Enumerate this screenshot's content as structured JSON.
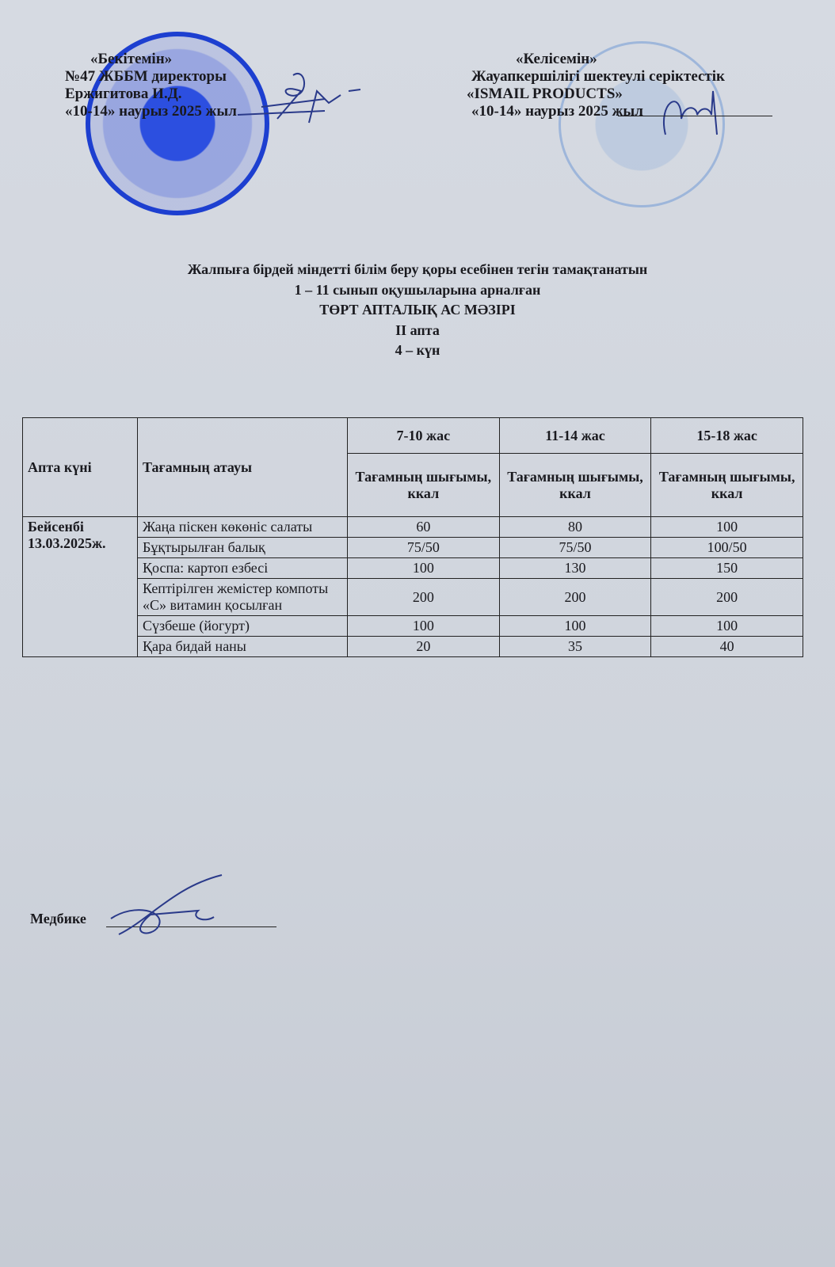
{
  "approve": {
    "line1": "«Бекітемін»",
    "line2": "№47 ЖББМ директоры",
    "line3": "Ержигитова И.Д.",
    "line4": "«10-14» наурыз 2025 жыл"
  },
  "agree": {
    "line1": "«Келісемін»",
    "line2": "Жауапкершілігі шектеулі серіктестік",
    "line3": "«ISMAIL PRODUCTS»",
    "line4": "«10-14» наурыз 2025 жыл"
  },
  "title": {
    "line1": "Жалпыға бірдей міндетті білім беру қоры есебінен тегін тамақтанатын",
    "line2": "1 – 11 сынып оқушыларына арналған",
    "line3": "ТӨРТ АПТАЛЫҚ АС МӘЗІРІ",
    "week": "II апта",
    "day": "4 – күн"
  },
  "table": {
    "col_day": "Апта күні",
    "col_dish": "Тағамның атауы",
    "ages": [
      "7-10 жас",
      "11-14 жас",
      "15-18 жас"
    ],
    "yield_label": "Тағамның шығымы, ккал",
    "day_name": "Бейсенбі",
    "day_date": "13.03.2025ж.",
    "rows": [
      {
        "dish": "Жаңа піскен көкөніс салаты",
        "v": [
          "60",
          "80",
          "100"
        ]
      },
      {
        "dish": "Бұқтырылған балық",
        "v": [
          "75/50",
          "75/50",
          "100/50"
        ]
      },
      {
        "dish": "Қоспа: картоп езбесі",
        "v": [
          "100",
          "130",
          "150"
        ]
      },
      {
        "dish": "Кептірілген жемістер компоты «С» витамин қосылған",
        "v": [
          "200",
          "200",
          "200"
        ]
      },
      {
        "dish": "Сүзбеше (йогурт)",
        "v": [
          "100",
          "100",
          "100"
        ]
      },
      {
        "dish": "Қара бидай наны",
        "v": [
          "20",
          "35",
          "40"
        ]
      }
    ]
  },
  "footer": {
    "nurse": "Медбике"
  },
  "colors": {
    "stamp_blue": "#1d3fd0",
    "ink": "#2a3a8a"
  }
}
